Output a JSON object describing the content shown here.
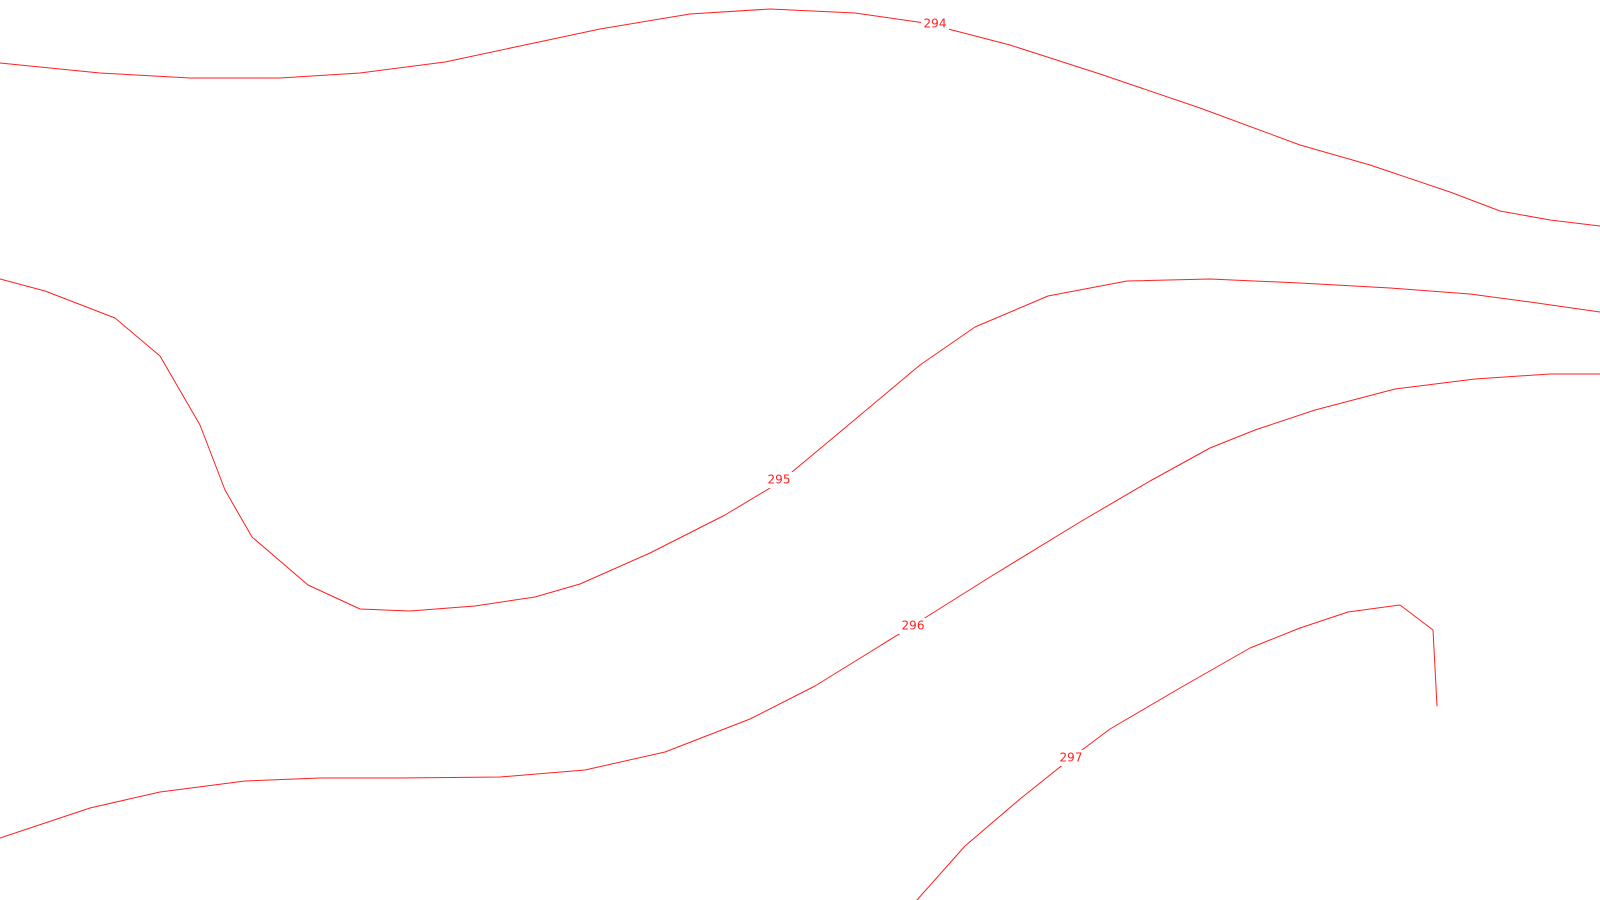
{
  "map": {
    "background_color": "#ffffff",
    "line_color": "#ff2020",
    "contours": [
      {
        "id": "294",
        "label": "294"
      },
      {
        "id": "295",
        "label": "295"
      },
      {
        "id": "296",
        "label": "296"
      },
      {
        "id": "297",
        "label": "297"
      }
    ]
  }
}
